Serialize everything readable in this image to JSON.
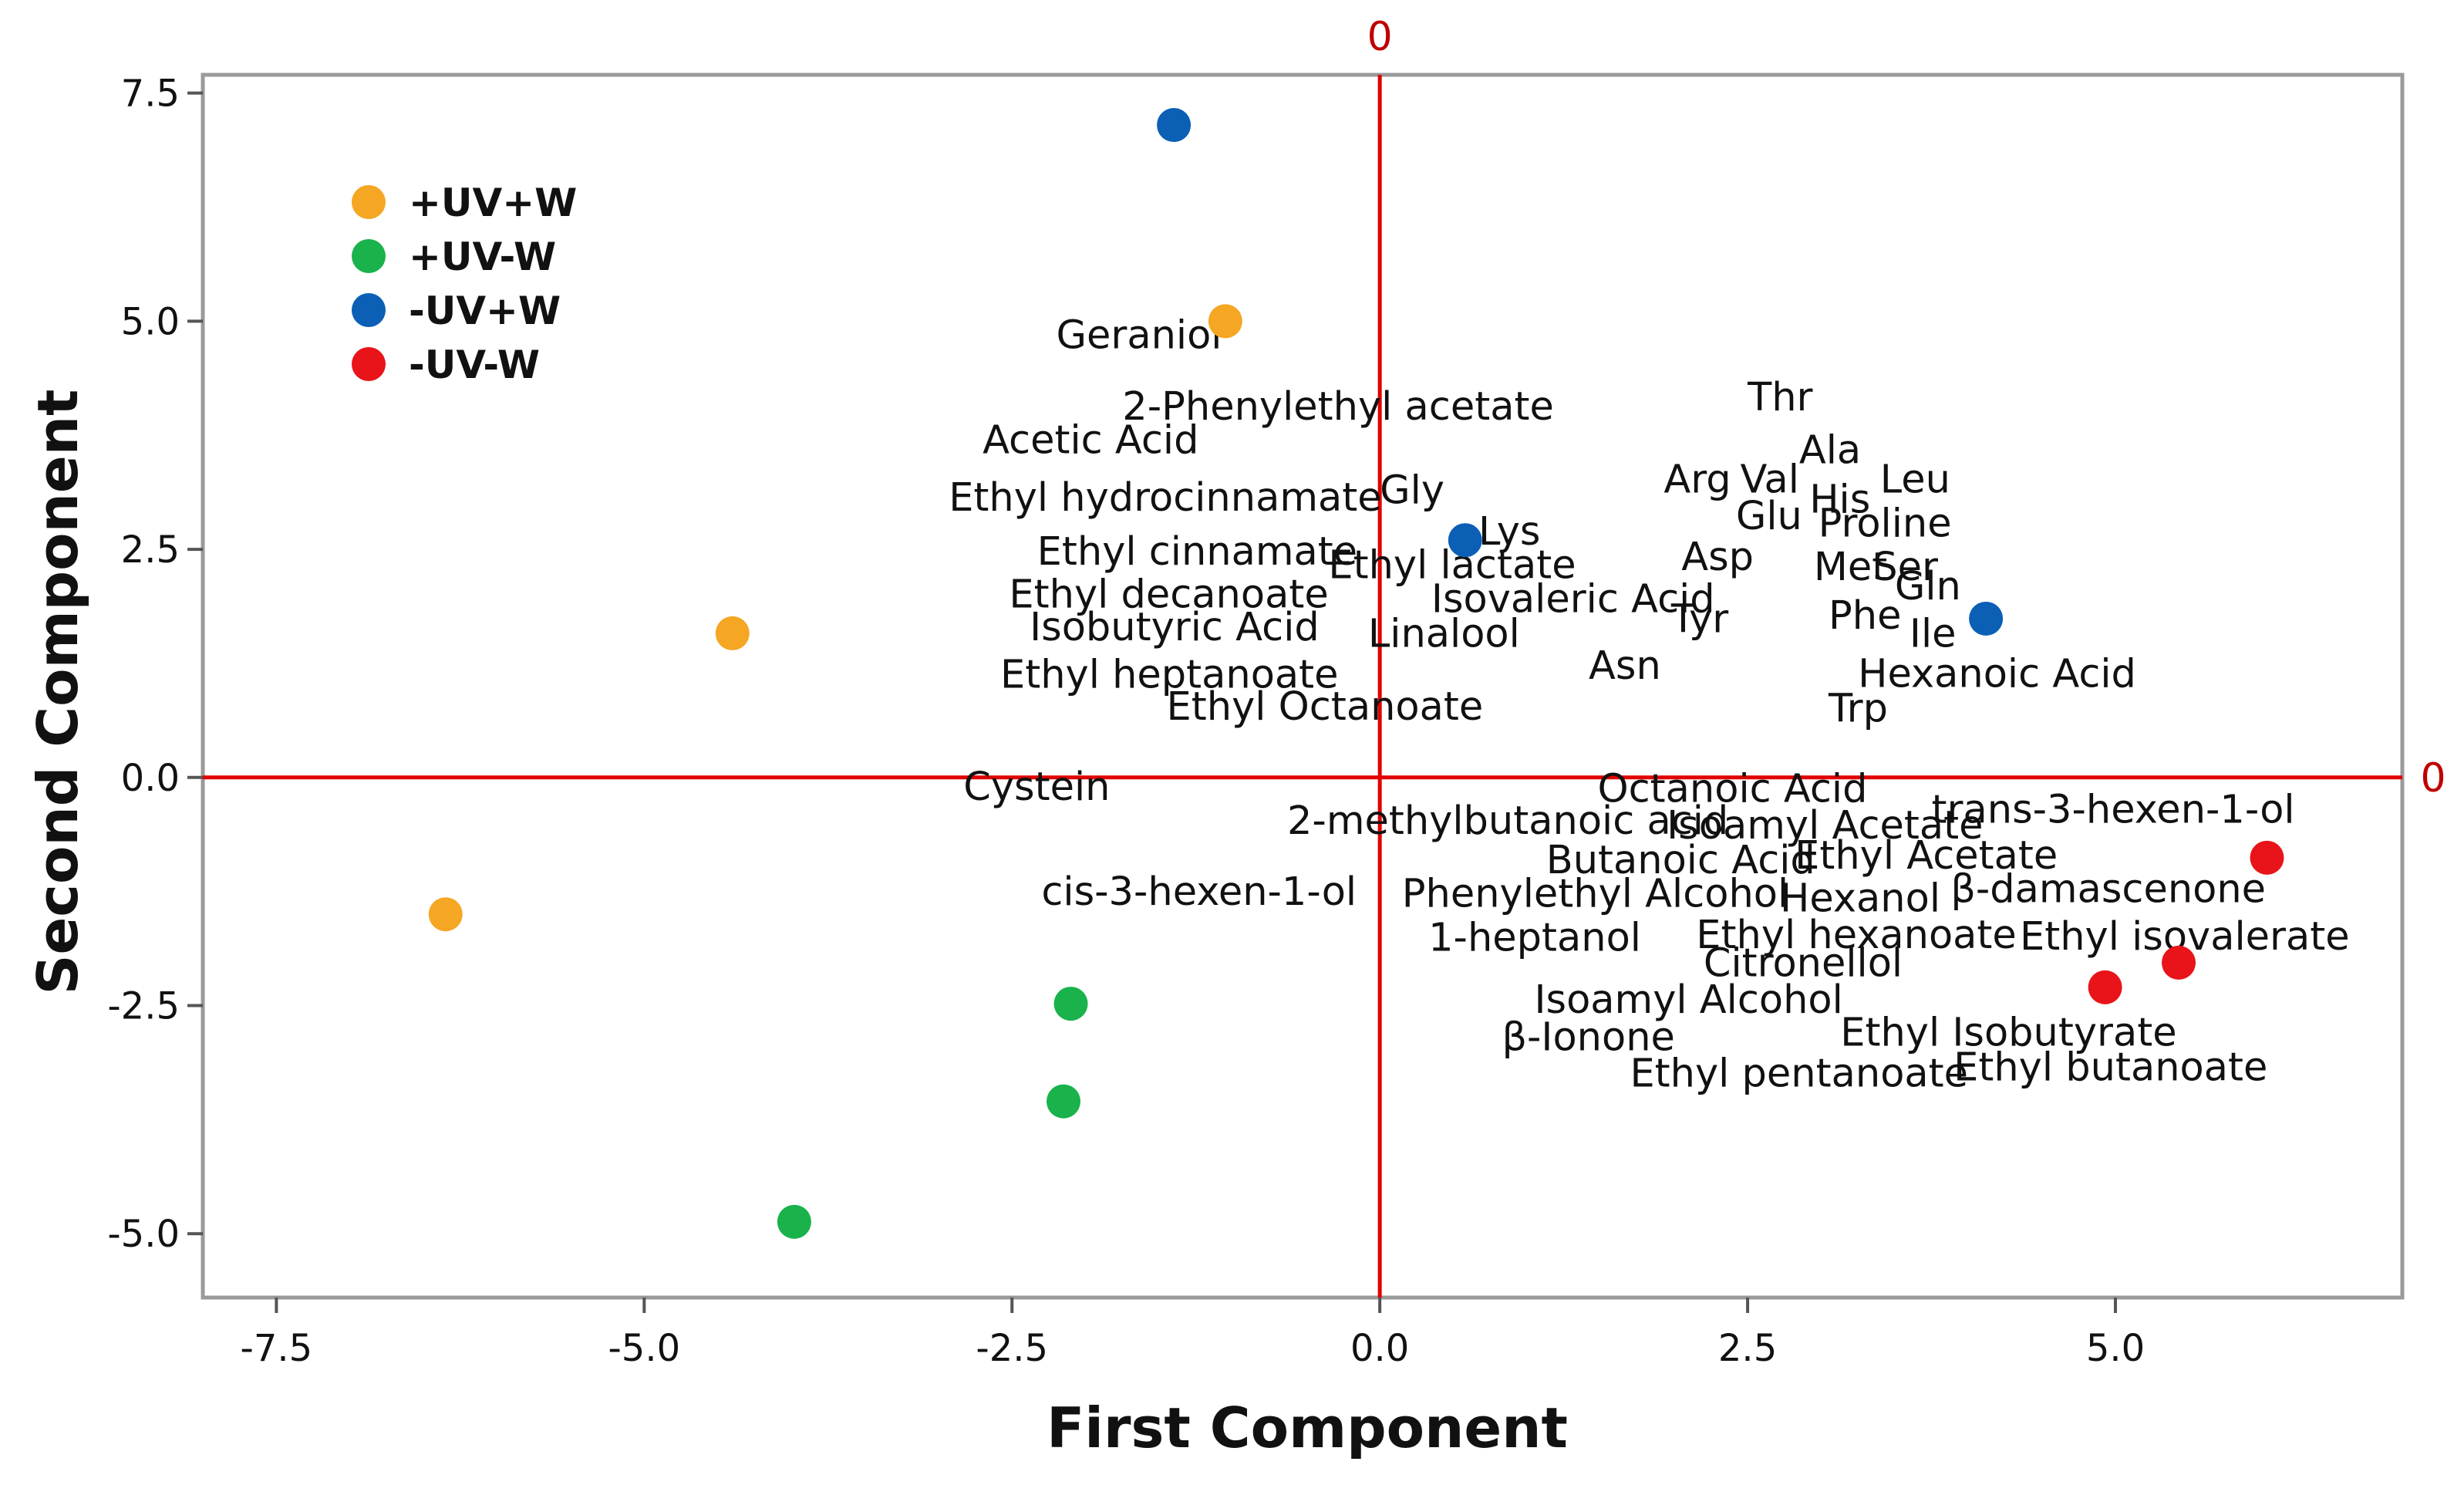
{
  "chart_data": {
    "type": "scatter",
    "xlabel": "First Component",
    "ylabel": "Second Component",
    "xlim": [
      -8.0,
      6.95
    ],
    "ylim": [
      -5.7,
      7.7
    ],
    "x_ticks": [
      -7.5,
      -5.0,
      -2.5,
      0.0,
      2.5,
      5.0
    ],
    "x_tick_labels": [
      "-7.5",
      "-5.0",
      "-2.5",
      "0.0",
      "2.5",
      "5.0"
    ],
    "y_ticks": [
      -5.0,
      -2.5,
      0.0,
      2.5,
      5.0,
      7.5
    ],
    "y_tick_labels": [
      "-5.0",
      "-2.5",
      "0.0",
      "2.5",
      "5.0",
      "7.5"
    ],
    "grid": false,
    "legend_position": "top-left",
    "reference_lines": {
      "x": 0,
      "y": 0,
      "color": "#e00000",
      "label": "0"
    },
    "series": [
      {
        "name": "+UV+W",
        "color": "#f5a623",
        "points": [
          {
            "x": -1.05,
            "y": 5.0
          },
          {
            "x": -4.4,
            "y": 1.58
          },
          {
            "x": -6.35,
            "y": -1.5
          }
        ]
      },
      {
        "name": "+UV-W",
        "color": "#19b24b",
        "points": [
          {
            "x": -2.1,
            "y": -2.48
          },
          {
            "x": -2.15,
            "y": -3.55
          },
          {
            "x": -3.98,
            "y": -4.87
          }
        ]
      },
      {
        "name": "-UV+W",
        "color": "#0b5fb5",
        "points": [
          {
            "x": -1.4,
            "y": 7.15
          },
          {
            "x": 0.58,
            "y": 2.6
          },
          {
            "x": 4.12,
            "y": 1.74
          }
        ]
      },
      {
        "name": "-UV-W",
        "color": "#e8141a",
        "points": [
          {
            "x": 6.03,
            "y": -0.88
          },
          {
            "x": 5.43,
            "y": -2.03
          },
          {
            "x": 4.93,
            "y": -2.3
          }
        ]
      }
    ],
    "variable_labels": [
      {
        "text": "Geraniol",
        "x": -2.2,
        "y": 4.82
      },
      {
        "text": "2-Phenylethyl acetate",
        "x": -1.75,
        "y": 4.04
      },
      {
        "text": "Acetic Acid",
        "x": -2.7,
        "y": 3.67
      },
      {
        "text": "Ethyl hydrocinnamate",
        "x": -2.93,
        "y": 3.04
      },
      {
        "text": "Gly",
        "x": 0.0,
        "y": 3.12
      },
      {
        "text": "Lys",
        "x": 0.67,
        "y": 2.67
      },
      {
        "text": "Ethyl cinnamate",
        "x": -2.33,
        "y": 2.45
      },
      {
        "text": "Ethyl lactate",
        "x": -0.35,
        "y": 2.3
      },
      {
        "text": "Ethyl decanoate",
        "x": -2.52,
        "y": 1.98
      },
      {
        "text": "Isovaleric Acid",
        "x": 0.35,
        "y": 1.93
      },
      {
        "text": "Isobutyric Acid",
        "x": -2.38,
        "y": 1.62
      },
      {
        "text": "Linalool",
        "x": -0.08,
        "y": 1.55
      },
      {
        "text": "Ethyl heptanoate",
        "x": -2.58,
        "y": 1.1
      },
      {
        "text": "Ethyl Octanoate",
        "x": -1.45,
        "y": 0.75
      },
      {
        "text": "Thr",
        "x": 2.5,
        "y": 4.14
      },
      {
        "text": "Ala",
        "x": 2.85,
        "y": 3.56
      },
      {
        "text": "Arg",
        "x": 1.93,
        "y": 3.24
      },
      {
        "text": "Val",
        "x": 2.45,
        "y": 3.24
      },
      {
        "text": "His",
        "x": 2.92,
        "y": 3.02
      },
      {
        "text": "Leu",
        "x": 3.4,
        "y": 3.24
      },
      {
        "text": "Glu",
        "x": 2.42,
        "y": 2.84
      },
      {
        "text": "Proline",
        "x": 2.98,
        "y": 2.76
      },
      {
        "text": "Asp",
        "x": 2.05,
        "y": 2.39
      },
      {
        "text": "Met",
        "x": 2.95,
        "y": 2.28
      },
      {
        "text": "Ser",
        "x": 3.35,
        "y": 2.28
      },
      {
        "text": "Gln",
        "x": 3.5,
        "y": 2.07
      },
      {
        "text": "Tyr",
        "x": 1.98,
        "y": 1.71
      },
      {
        "text": "Phe",
        "x": 3.05,
        "y": 1.75
      },
      {
        "text": "Ile",
        "x": 3.6,
        "y": 1.55
      },
      {
        "text": "Asn",
        "x": 1.42,
        "y": 1.2
      },
      {
        "text": "Hexanoic Acid",
        "x": 3.25,
        "y": 1.11
      },
      {
        "text": "Trp",
        "x": 3.05,
        "y": 0.73
      },
      {
        "text": "Cystein",
        "x": -2.83,
        "y": -0.13
      },
      {
        "text": "Octanoic Acid",
        "x": 1.48,
        "y": -0.15
      },
      {
        "text": "2-methylbutanoic acid",
        "x": -0.63,
        "y": -0.5
      },
      {
        "text": "Isoamyl Acetate",
        "x": 1.95,
        "y": -0.55
      },
      {
        "text": "trans-3-hexen-1-ol",
        "x": 3.75,
        "y": -0.38
      },
      {
        "text": "Butanoic Acid",
        "x": 1.13,
        "y": -0.93
      },
      {
        "text": "Ethyl Acetate",
        "x": 2.82,
        "y": -0.88
      },
      {
        "text": "cis-3-hexen-1-ol",
        "x": -2.3,
        "y": -1.28
      },
      {
        "text": "Phenylethyl Alcohol",
        "x": 0.15,
        "y": -1.3
      },
      {
        "text": "Hexanol",
        "x": 2.72,
        "y": -1.35
      },
      {
        "text": "β-damascenone",
        "x": 3.88,
        "y": -1.25
      },
      {
        "text": "1-heptanol",
        "x": 0.33,
        "y": -1.78
      },
      {
        "text": "Ethyl hexanoate",
        "x": 2.15,
        "y": -1.75
      },
      {
        "text": "Ethyl isovalerate",
        "x": 4.35,
        "y": -1.77
      },
      {
        "text": "Citronellol",
        "x": 2.2,
        "y": -2.06
      },
      {
        "text": "Isoamyl Alcohol",
        "x": 1.05,
        "y": -2.46
      },
      {
        "text": "β-Ionone",
        "x": 0.83,
        "y": -2.87
      },
      {
        "text": "Ethyl Isobutyrate",
        "x": 3.13,
        "y": -2.82
      },
      {
        "text": "Ethyl pentanoate",
        "x": 1.7,
        "y": -3.27
      },
      {
        "text": "Ethyl butanoate",
        "x": 3.9,
        "y": -3.2
      }
    ]
  }
}
